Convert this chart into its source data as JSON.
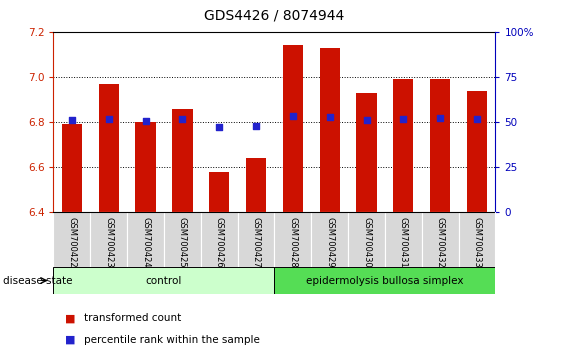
{
  "title": "GDS4426 / 8074944",
  "samples": [
    "GSM700422",
    "GSM700423",
    "GSM700424",
    "GSM700425",
    "GSM700426",
    "GSM700427",
    "GSM700428",
    "GSM700429",
    "GSM700430",
    "GSM700431",
    "GSM700432",
    "GSM700433"
  ],
  "bar_values": [
    6.79,
    6.97,
    6.8,
    6.86,
    6.58,
    6.64,
    7.14,
    7.13,
    6.93,
    6.99,
    6.99,
    6.94
  ],
  "blue_dots": [
    6.808,
    6.815,
    6.805,
    6.813,
    6.778,
    6.781,
    6.828,
    6.823,
    6.808,
    6.813,
    6.82,
    6.813
  ],
  "bar_color": "#cc1100",
  "dot_color": "#2222cc",
  "ylim_left": [
    6.4,
    7.2
  ],
  "ylim_right": [
    0,
    100
  ],
  "yticks_left": [
    6.4,
    6.6,
    6.8,
    7.0,
    7.2
  ],
  "yticks_right": [
    0,
    25,
    50,
    75,
    100
  ],
  "ytick_labels_right": [
    "0",
    "25",
    "50",
    "75",
    "100%"
  ],
  "base": 6.4,
  "groups": [
    {
      "label": "control",
      "start": 0,
      "end": 5,
      "color": "#ccffcc"
    },
    {
      "label": "epidermolysis bullosa simplex",
      "start": 6,
      "end": 11,
      "color": "#55dd55"
    }
  ],
  "disease_label": "disease state",
  "legend_bar_label": "transformed count",
  "legend_dot_label": "percentile rank within the sample",
  "left_tick_color": "#cc2200",
  "right_tick_color": "#0000bb",
  "grid_yticks": [
    6.6,
    6.8,
    7.0
  ]
}
